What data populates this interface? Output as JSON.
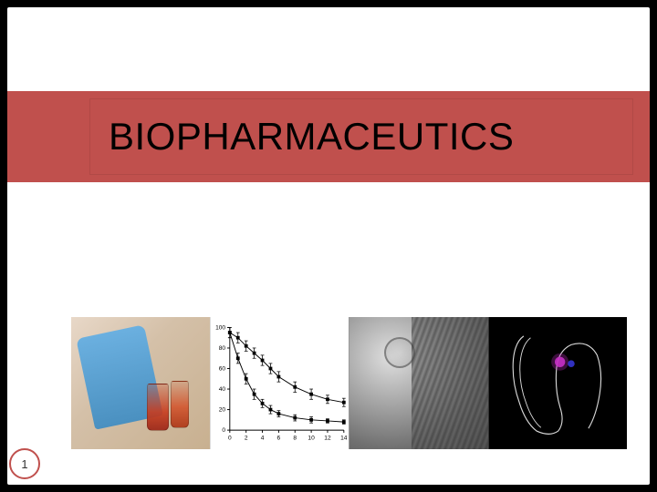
{
  "slide": {
    "title": "BIOPHARMACEUTICS",
    "page_number": "1",
    "title_bar_color": "#c0504d",
    "background_color": "#ffffff",
    "outer_background": "#000000"
  },
  "panels": {
    "chart": {
      "type": "line",
      "xlim": [
        0,
        14
      ],
      "ylim": [
        0,
        100
      ],
      "xtick_step": 2,
      "ytick_step": 20,
      "series": [
        {
          "name": "upper",
          "color": "#000000",
          "marker": "square",
          "x": [
            0,
            1,
            2,
            3,
            4,
            5,
            6,
            8,
            10,
            12,
            14
          ],
          "y": [
            95,
            90,
            82,
            75,
            68,
            60,
            52,
            42,
            35,
            30,
            27
          ],
          "yerr": [
            5,
            5,
            5,
            5,
            5,
            5,
            5,
            5,
            5,
            4,
            4
          ]
        },
        {
          "name": "lower",
          "color": "#000000",
          "marker": "square",
          "x": [
            0,
            1,
            2,
            3,
            4,
            5,
            6,
            8,
            10,
            12,
            14
          ],
          "y": [
            95,
            70,
            50,
            35,
            26,
            20,
            16,
            12,
            10,
            9,
            8
          ],
          "yerr": [
            5,
            5,
            5,
            5,
            4,
            4,
            3,
            3,
            3,
            2,
            2
          ]
        }
      ],
      "axis_color": "#000000",
      "tick_fontsize": 7
    },
    "scan": {
      "background": "#000000",
      "outline_color": "#e0e0e0",
      "hotspot_color": "#d040d0",
      "hotspot2_color": "#4040ff"
    }
  }
}
